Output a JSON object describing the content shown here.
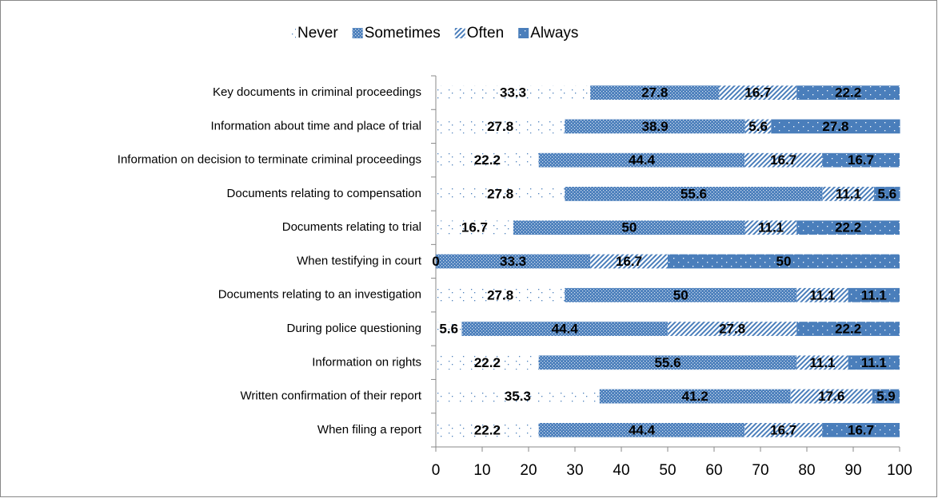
{
  "chart_data": {
    "type": "bar",
    "orientation": "horizontal",
    "stacked": true,
    "categories": [
      "Key documents in criminal proceedings",
      "Information about time and place of trial",
      "Information on decision to terminate criminal proceedings",
      "Documents relating to compensation",
      "Documents relating to trial",
      "When testifying in court",
      "Documents relating to an investigation",
      "During police questioning",
      "Information on rights",
      "Written confirmation of their report",
      "When filing a report"
    ],
    "series": [
      {
        "name": "Never",
        "color": "#4a7ebb",
        "values": [
          33.3,
          27.8,
          22.2,
          27.8,
          16.7,
          0,
          27.8,
          5.6,
          22.2,
          35.3,
          22.2
        ]
      },
      {
        "name": "Sometimes",
        "color": "#4a7ebb",
        "values": [
          27.8,
          38.9,
          44.4,
          55.6,
          50,
          33.3,
          50,
          44.4,
          55.6,
          41.2,
          44.4
        ]
      },
      {
        "name": "Often",
        "color": "#4a7ebb",
        "values": [
          16.7,
          5.6,
          16.7,
          11.1,
          11.1,
          16.7,
          11.1,
          27.8,
          11.1,
          17.6,
          16.7
        ]
      },
      {
        "name": "Always",
        "color": "#4a7ebb",
        "values": [
          22.2,
          27.8,
          16.7,
          5.6,
          22.2,
          50,
          11.1,
          22.2,
          11.1,
          5.9,
          16.7
        ]
      }
    ],
    "xlim": [
      0,
      100
    ],
    "xticks": [
      0,
      10,
      20,
      30,
      40,
      50,
      60,
      70,
      80,
      90,
      100
    ],
    "legend": "top"
  }
}
